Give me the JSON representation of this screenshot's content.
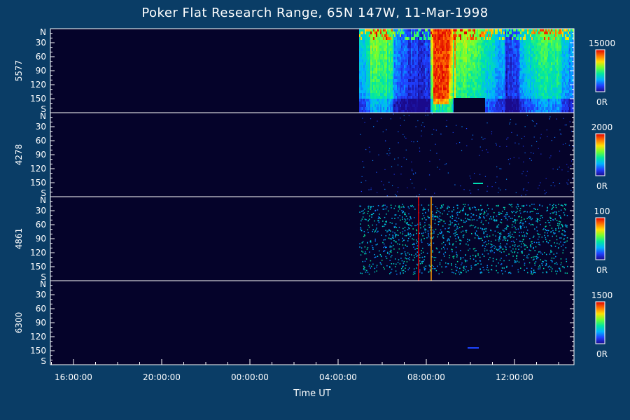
{
  "chart_data": {
    "type": "heatmap",
    "title": "Poker Flat Research Range, 65N 147W, 11-Mar-1998",
    "xlabel": "Time UT",
    "x_tick_labels": [
      "16:00:00",
      "20:00:00",
      "00:00:00",
      "04:00:00",
      "08:00:00",
      "12:00:00"
    ],
    "y_tick_labels": [
      "N",
      "30",
      "60",
      "90",
      "120",
      "150",
      "S"
    ],
    "colormap": [
      "#1a0a8c",
      "#1f3fff",
      "#00b4ff",
      "#00e8a0",
      "#70ff30",
      "#ffe000",
      "#ff7000",
      "#e00000"
    ],
    "background": "#05032a",
    "panels": [
      {
        "name": "5577",
        "cbar_max": "15000",
        "cbar_min": "0R"
      },
      {
        "name": "4278",
        "cbar_max": "2000",
        "cbar_min": "0R"
      },
      {
        "name": "4861",
        "cbar_max": "100",
        "cbar_min": "0R"
      },
      {
        "name": "6300",
        "cbar_max": "1500",
        "cbar_min": "0R"
      }
    ]
  }
}
